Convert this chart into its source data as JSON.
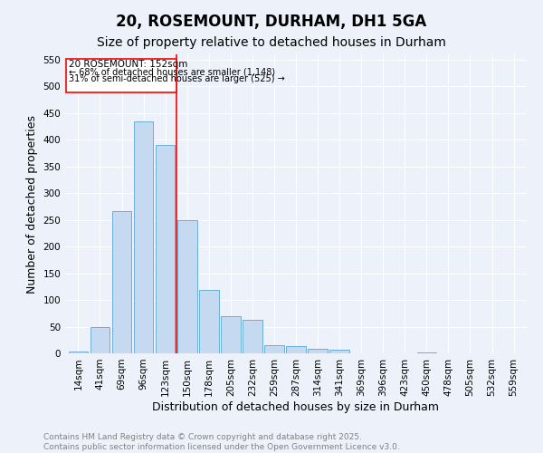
{
  "title": "20, ROSEMOUNT, DURHAM, DH1 5GA",
  "subtitle": "Size of property relative to detached houses in Durham",
  "xlabel": "Distribution of detached houses by size in Durham",
  "ylabel": "Number of detached properties",
  "bar_labels": [
    "14sqm",
    "41sqm",
    "69sqm",
    "96sqm",
    "123sqm",
    "150sqm",
    "178sqm",
    "205sqm",
    "232sqm",
    "259sqm",
    "287sqm",
    "314sqm",
    "341sqm",
    "369sqm",
    "396sqm",
    "423sqm",
    "450sqm",
    "478sqm",
    "505sqm",
    "532sqm",
    "559sqm"
  ],
  "bar_values": [
    3,
    50,
    267,
    435,
    390,
    250,
    118,
    70,
    62,
    15,
    14,
    8,
    7,
    0,
    0,
    0,
    2,
    0,
    0,
    0,
    0
  ],
  "bar_color": "#c5d9f0",
  "bar_edgecolor": "#6aaed6",
  "vline_color": "red",
  "annotation_line1": "20 ROSEMOUNT: 152sqm",
  "annotation_line2": "← 68% of detached houses are smaller (1,148)",
  "annotation_line3": "31% of semi-detached houses are larger (525) →",
  "ylim": [
    0,
    560
  ],
  "yticks": [
    0,
    50,
    100,
    150,
    200,
    250,
    300,
    350,
    400,
    450,
    500,
    550
  ],
  "footer_line1": "Contains HM Land Registry data © Crown copyright and database right 2025.",
  "footer_line2": "Contains public sector information licensed under the Open Government Licence v3.0.",
  "bg_color": "#edf2fa",
  "grid_color": "#ffffff",
  "title_fontsize": 12,
  "subtitle_fontsize": 10,
  "axis_label_fontsize": 9,
  "tick_fontsize": 7.5,
  "footer_fontsize": 6.5,
  "annotation_fontsize": 7.5
}
